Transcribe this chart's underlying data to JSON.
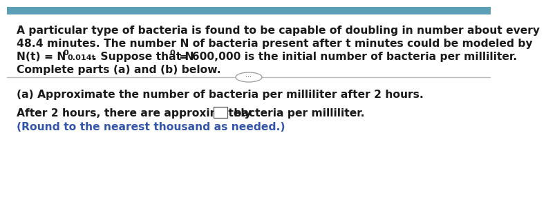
{
  "bg_color": "#ffffff",
  "top_bar_color": "#5b9eb5",
  "text_color": "#1a1a1a",
  "gray_color": "#999999",
  "blue_color": "#3355aa",
  "divider_color": "#bbbbbb",
  "line1": "A particular type of bacteria is found to be capable of doubling in number about every",
  "line2": "48.4 minutes. The number N of bacteria present after t minutes could be modeled by",
  "line3a": "N(t) = N",
  "line3b": "0",
  "line3c": "0.014t",
  "line3d": ". Suppose that N",
  "line3e": "0",
  "line3f": " = 600,000 is the initial number of bacteria per milliliter.",
  "line4": "Complete parts (a) and (b) below.",
  "part_a": "(a) Approximate the number of bacteria per milliliter after 2 hours.",
  "ans_pre": "After 2 hours, there are approximately",
  "ans_suf": "bacteria per milliliter.",
  "round_note": "(Round to the nearest thousand as needed.)",
  "fs": 11.2
}
